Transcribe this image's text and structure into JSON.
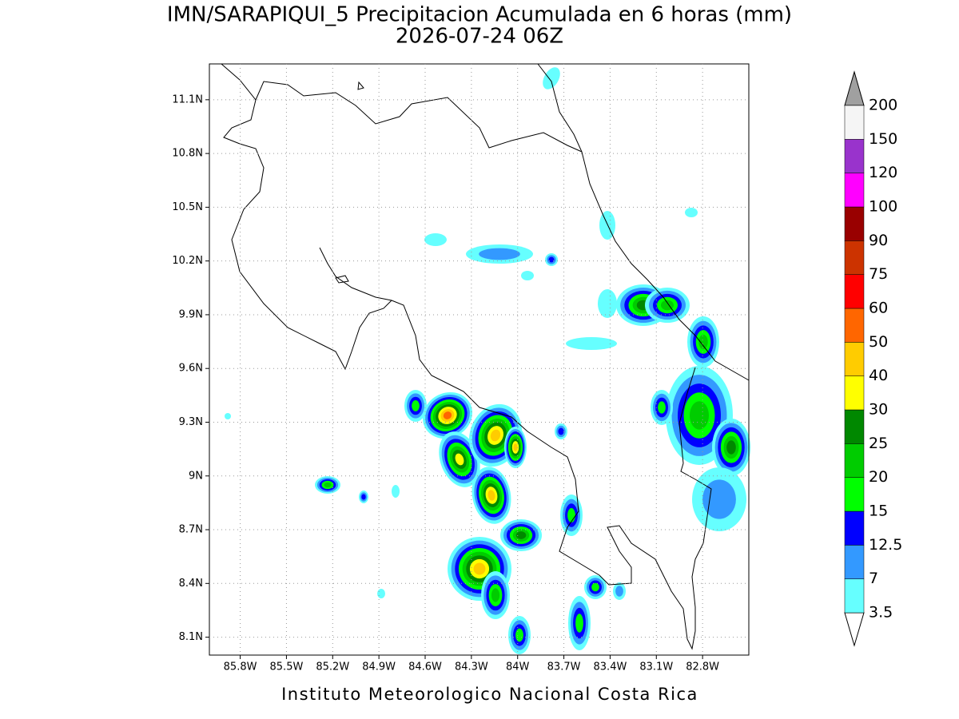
{
  "chart_data": {
    "type": "map",
    "title": "IMN/SARAPIQUI_5 Precipitacion Acumulada en 6 horas (mm)",
    "subtitle": "2026-07-24 06Z",
    "footer": "Instituto Meteorologico Nacional Costa Rica",
    "xlim": [
      -86.0,
      -82.5
    ],
    "ylim": [
      8.0,
      11.3
    ],
    "xticks": [
      {
        "value": -85.8,
        "label": "85.8W"
      },
      {
        "value": -85.5,
        "label": "85.5W"
      },
      {
        "value": -85.2,
        "label": "85.2W"
      },
      {
        "value": -84.9,
        "label": "84.9W"
      },
      {
        "value": -84.6,
        "label": "84.6W"
      },
      {
        "value": -84.3,
        "label": "84.3W"
      },
      {
        "value": -84.0,
        "label": "84W"
      },
      {
        "value": -83.7,
        "label": "83.7W"
      },
      {
        "value": -83.4,
        "label": "83.4W"
      },
      {
        "value": -83.1,
        "label": "83.1W"
      },
      {
        "value": -82.8,
        "label": "82.8W"
      }
    ],
    "yticks": [
      {
        "value": 8.1,
        "label": "8.1N"
      },
      {
        "value": 8.4,
        "label": "8.4N"
      },
      {
        "value": 8.7,
        "label": "8.7N"
      },
      {
        "value": 9.0,
        "label": "9N"
      },
      {
        "value": 9.3,
        "label": "9.3N"
      },
      {
        "value": 9.6,
        "label": "9.6N"
      },
      {
        "value": 9.9,
        "label": "9.9N"
      },
      {
        "value": 10.2,
        "label": "10.2N"
      },
      {
        "value": 10.5,
        "label": "10.5N"
      },
      {
        "value": 10.8,
        "label": "10.8N"
      },
      {
        "value": 11.1,
        "label": "11.1N"
      }
    ],
    "grid": true,
    "colorbar": {
      "levels": [
        3.5,
        7,
        12.5,
        15,
        20,
        25,
        30,
        40,
        50,
        60,
        75,
        90,
        100,
        120,
        150,
        200
      ],
      "colors": [
        "#ffffff",
        "#66ffff",
        "#3399ff",
        "#0000ff",
        "#00ff00",
        "#00cc00",
        "#008800",
        "#ffff00",
        "#ffcc00",
        "#ff6600",
        "#ff0000",
        "#cc3300",
        "#990000",
        "#ff00ff",
        "#9933cc",
        "#f5f5f5",
        "#a0a0a0"
      ]
    }
  }
}
